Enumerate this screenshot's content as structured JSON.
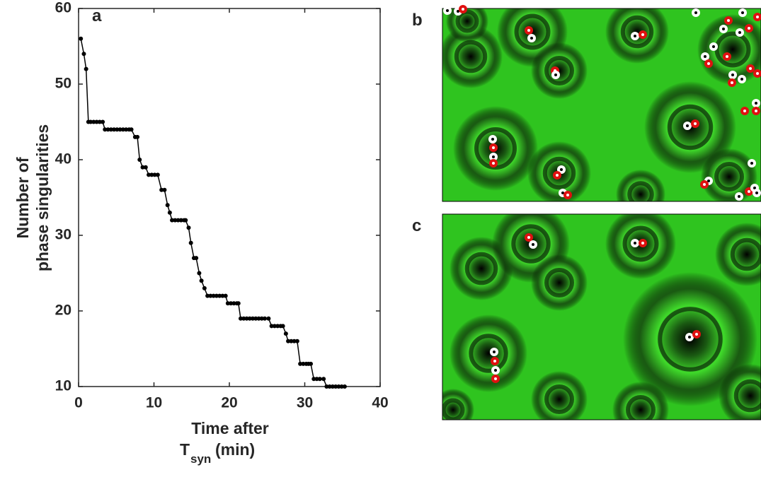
{
  "chart_data": {
    "type": "line",
    "panel_label": "a",
    "ylabel": [
      "Number of",
      "phase singularities"
    ],
    "xlabel": {
      "line1": "Time after",
      "base": "T",
      "subscript": "syn",
      "unit": "(min)"
    },
    "color": "#000000",
    "x": [
      0.3,
      0.7,
      1.0,
      1.3,
      1.6,
      2.0,
      2.4,
      2.8,
      3.2,
      3.5,
      3.9,
      4.3,
      4.7,
      5.1,
      5.5,
      5.9,
      6.3,
      6.7,
      7.0,
      7.5,
      7.8,
      8.1,
      8.5,
      8.9,
      9.3,
      9.7,
      10.1,
      10.5,
      11.0,
      11.4,
      11.8,
      12.1,
      12.4,
      12.8,
      13.2,
      13.6,
      14.0,
      14.2,
      14.6,
      14.9,
      15.3,
      15.6,
      16.0,
      16.3,
      16.7,
      17.1,
      17.5,
      17.9,
      18.3,
      18.7,
      19.1,
      19.5,
      19.8,
      20.2,
      20.6,
      21.0,
      21.2,
      21.5,
      21.9,
      22.3,
      22.7,
      23.1,
      23.5,
      23.9,
      24.3,
      24.7,
      25.2,
      25.6,
      26.0,
      26.4,
      26.8,
      27.1,
      27.5,
      27.8,
      28.2,
      28.6,
      29.0,
      29.4,
      29.8,
      30.2,
      30.5,
      30.8,
      31.2,
      31.6,
      32.0,
      32.5,
      32.9,
      33.3,
      33.7,
      34.1,
      34.5,
      34.9,
      35.3
    ],
    "values": [
      56,
      54,
      52,
      45,
      45,
      45,
      45,
      45,
      45,
      44,
      44,
      44,
      44,
      44,
      44,
      44,
      44,
      44,
      44,
      43,
      43,
      40,
      39,
      39,
      38,
      38,
      38,
      38,
      36,
      36,
      34,
      33,
      32,
      32,
      32,
      32,
      32,
      32,
      31,
      29,
      27,
      27,
      25,
      24,
      23,
      22,
      22,
      22,
      22,
      22,
      22,
      22,
      21,
      21,
      21,
      21,
      21,
      19,
      19,
      19,
      19,
      19,
      19,
      19,
      19,
      19,
      19,
      18,
      18,
      18,
      18,
      18,
      17,
      16,
      16,
      16,
      16,
      13,
      13,
      13,
      13,
      13,
      11,
      11,
      11,
      11,
      10,
      10,
      10,
      10,
      10,
      10,
      10
    ],
    "xlim": [
      0,
      40
    ],
    "xticks": [
      0,
      10,
      20,
      30,
      40
    ],
    "ylim": [
      10,
      60
    ],
    "yticks": [
      10,
      20,
      30,
      40,
      50,
      60
    ]
  },
  "panels": [
    {
      "label": "b"
    },
    {
      "label": "c"
    }
  ]
}
